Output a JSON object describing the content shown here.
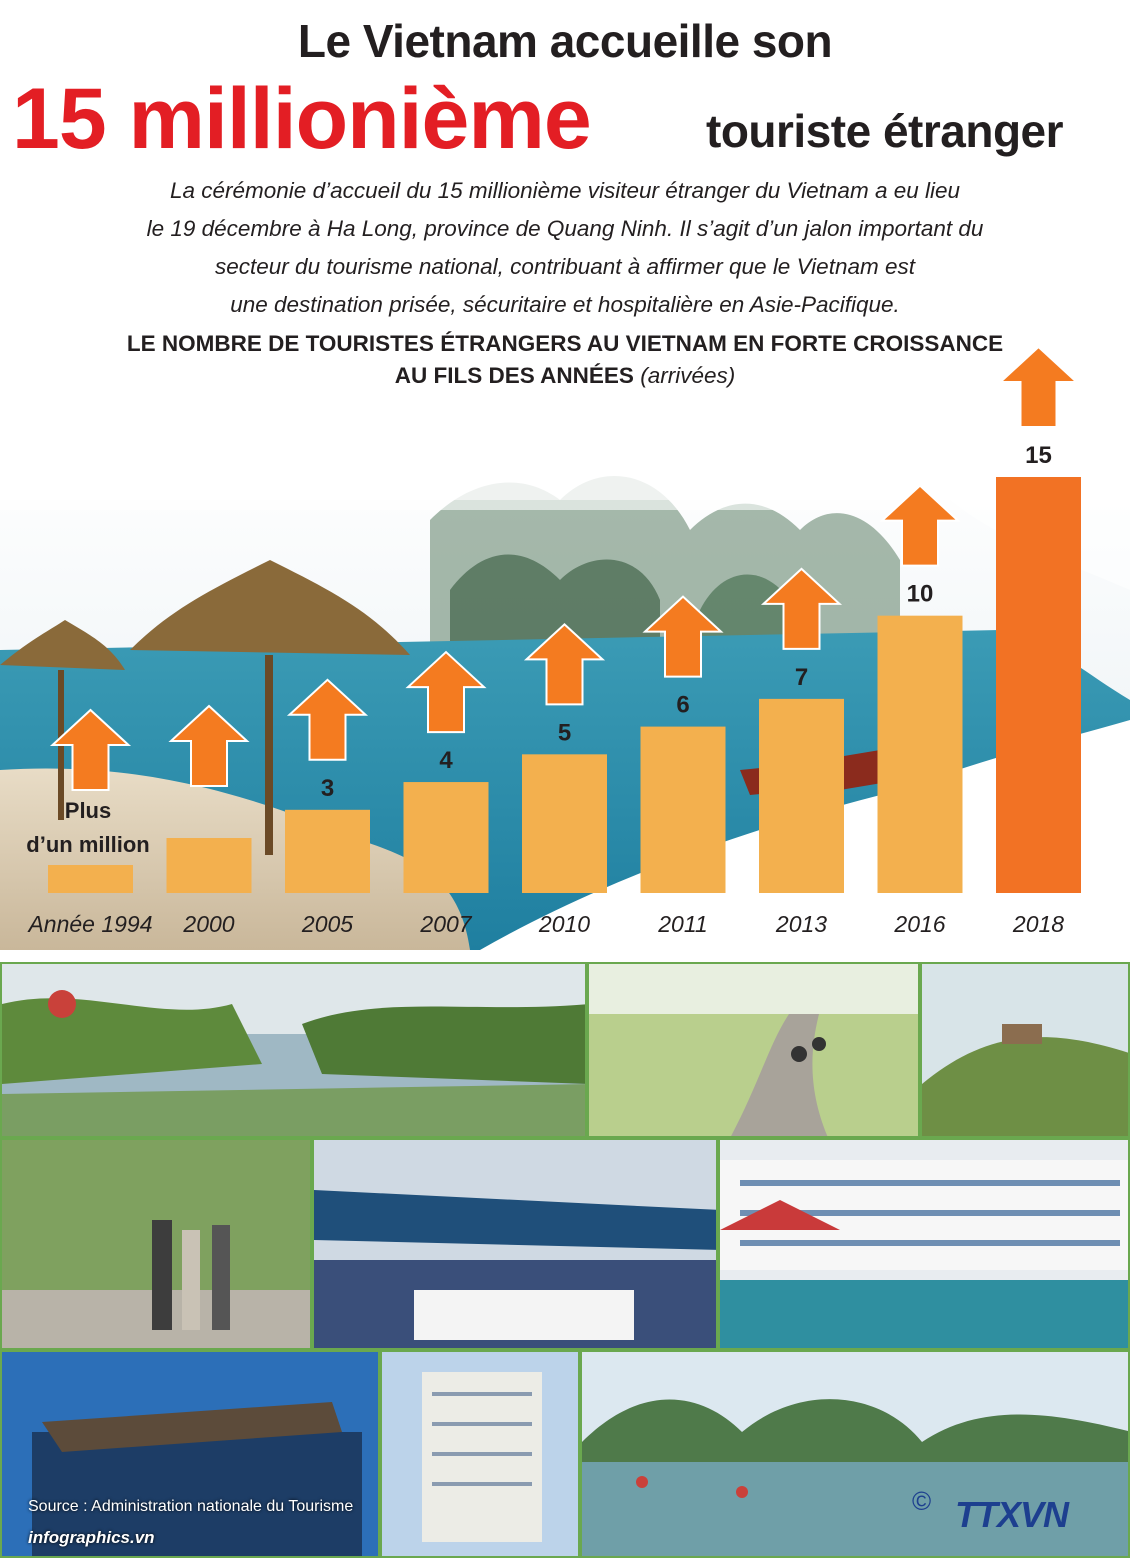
{
  "header": {
    "title_line1": "Le Vietnam accueille son",
    "title_highlight": "15 millionième",
    "title_rest": "touriste étranger",
    "intro_lines": [
      "La cérémonie d’accueil du 15 millionième visiteur étranger du Vietnam a eu lieu",
      "le 19 décembre à Ha Long, province de Quang Ninh. Il s’agit d’un jalon important du",
      "secteur du tourisme national, contribuant à affirmer que le Vietnam est",
      "une destination prisée, sécuritaire et hospitalière en Asie-Pacifique."
    ]
  },
  "chart_data": {
    "type": "bar",
    "title_line1": "LE NOMBRE DE TOURISTES ÉTRANGERS AU VIETNAM EN FORTE CROISSANCE",
    "title_line2": "AU FILS DES ANNÉES",
    "unit": "(arrivées)",
    "categories": [
      "Année 1994",
      "2000",
      "2005",
      "2007",
      "2010",
      "2011",
      "2013",
      "2016",
      "2018"
    ],
    "values": [
      1,
      2,
      3,
      4,
      5,
      6,
      7,
      10,
      15
    ],
    "data_labels": [
      "Plus d’un million",
      "",
      "3",
      "4",
      "5",
      "6",
      "7",
      "10",
      "15"
    ],
    "ylim": [
      0,
      15
    ],
    "colors": {
      "bar": "#f3b04e",
      "highlight": "#f27224",
      "arrow": "#f47b20"
    }
  },
  "footer": {
    "source": "Source : Administration nationale du Tourisme",
    "site": "infographics.vn",
    "copyright": "©",
    "logo": "TTXVN"
  },
  "colors": {
    "accent_red": "#e31e24",
    "text": "#231f20",
    "frame_green": "#6aa84f"
  }
}
